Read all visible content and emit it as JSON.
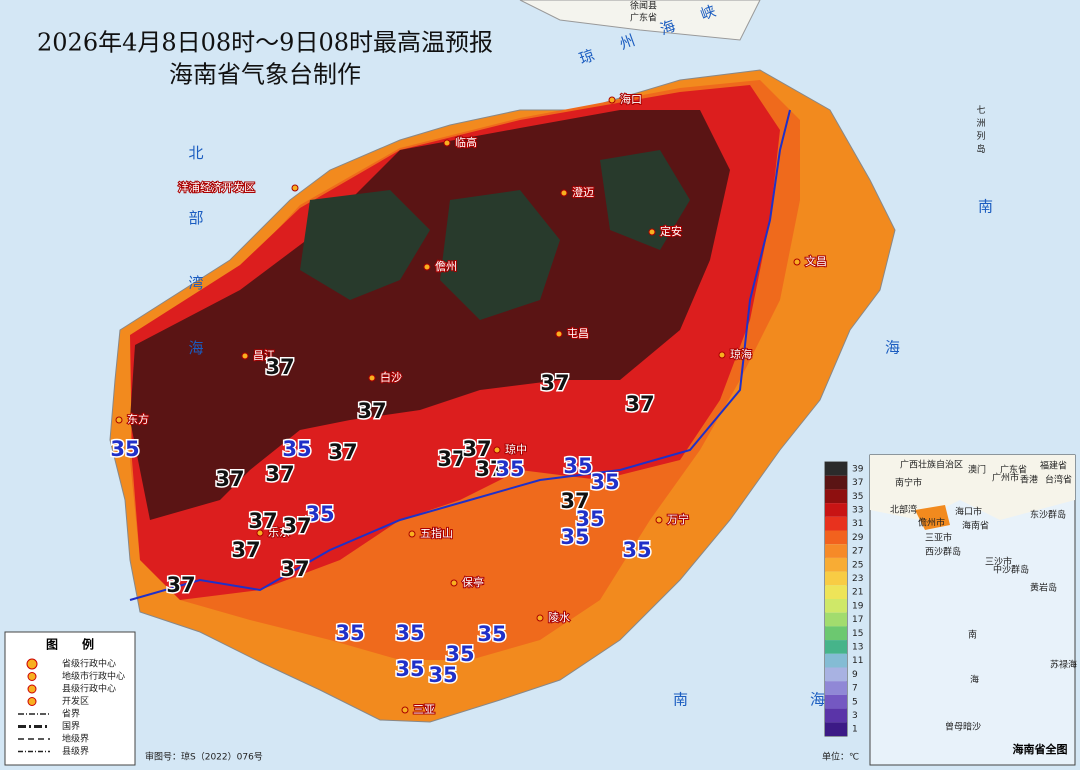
{
  "header": {
    "title": "2026年4月8日08时～9日08时最高温预报",
    "subtitle": "海南省气象台制作"
  },
  "top_labels": [
    "徐闻县",
    "广东省"
  ],
  "seas": [
    "琼州海峡",
    "北部湾海",
    "七洲列岛",
    "南",
    "海",
    "南",
    "海"
  ],
  "places": [
    "海口",
    "临高",
    "澄迈",
    "定安",
    "洋浦经济开发区",
    "儋州",
    "文昌",
    "屯昌",
    "琼海",
    "昌江",
    "白沙",
    "东方",
    "琼中",
    "乐东",
    "五指山",
    "万宁",
    "保亭",
    "陵水",
    "三亚"
  ],
  "isotherm_labels": [
    37,
    37,
    35,
    37,
    37,
    35,
    37,
    37,
    37,
    37,
    37,
    37,
    35,
    35,
    35,
    35,
    37,
    35,
    35,
    37,
    37,
    37,
    37,
    35,
    37,
    35,
    35,
    35,
    35,
    35,
    35
  ],
  "colorbar": {
    "ticks": [
      39,
      37,
      35,
      33,
      31,
      29,
      27,
      25,
      23,
      21,
      19,
      17,
      15,
      13,
      11,
      9,
      7,
      5,
      3,
      1
    ],
    "colors": [
      "#2b2b2b",
      "#5a1414",
      "#8e0f0f",
      "#c81414",
      "#e8321e",
      "#f2621e",
      "#f68a28",
      "#f8ac34",
      "#f8cc44",
      "#eee458",
      "#cfe868",
      "#a2dc6e",
      "#6cc870",
      "#46b48a",
      "#84bcd4",
      "#a8b2e2",
      "#9088d6",
      "#7458c2",
      "#5a34a8",
      "#3c1a86"
    ],
    "unit": "单位：℃"
  },
  "legend": {
    "title": "图　　例",
    "items": [
      "省级行政中心",
      "地级市行政中心",
      "县级行政中心",
      "开发区",
      "省界",
      "国界",
      "地级界",
      "县级界"
    ]
  },
  "approval": "审图号：琼S（2022）076号",
  "inset": {
    "title": "海南省全图",
    "labels": [
      "广西壮族自治区",
      "广东省",
      "福建省",
      "台湾省",
      "南宁市",
      "广州市",
      "澳门",
      "香港",
      "北部湾",
      "海口市",
      "儋州市",
      "三亚市",
      "海南省",
      "东沙群岛",
      "西沙群岛",
      "三沙市",
      "中沙群岛",
      "黄岩岛",
      "南",
      "海",
      "苏禄海",
      "曾母暗沙"
    ]
  }
}
